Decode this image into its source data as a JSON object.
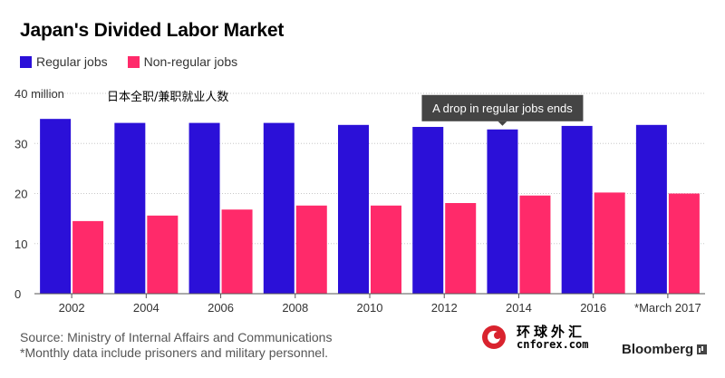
{
  "title": "Japan's Divided Labor Market",
  "subtitle_cn": "日本全职/兼职就业人数",
  "legend": [
    {
      "label": "Regular jobs",
      "color": "#2b10d8"
    },
    {
      "label": "Non-regular jobs",
      "color": "#ff2a6a"
    }
  ],
  "annotation": {
    "text": "A drop in regular jobs ends",
    "category": "2014"
  },
  "footer": {
    "source": "Source: Ministry of Internal Affairs and Communications",
    "note": "*Monthly data include prisoners and military personnel."
  },
  "watermark": {
    "cn": "环球外汇",
    "en": "cnforex.com"
  },
  "brand": "Bloomberg",
  "chart_data": {
    "type": "bar",
    "categories": [
      "2002",
      "2004",
      "2006",
      "2008",
      "2010",
      "2012",
      "2014",
      "2016",
      "*March 2017"
    ],
    "series": [
      {
        "name": "Regular jobs",
        "color": "#2b10d8",
        "values": [
          34.9,
          34.1,
          34.1,
          34.1,
          33.7,
          33.3,
          32.8,
          33.5,
          33.7
        ]
      },
      {
        "name": "Non-regular jobs",
        "color": "#ff2a6a",
        "values": [
          14.5,
          15.6,
          16.8,
          17.6,
          17.6,
          18.1,
          19.6,
          20.2,
          20.0
        ]
      }
    ],
    "ylim": [
      0,
      40
    ],
    "yticks": [
      0,
      10,
      20,
      30,
      40
    ],
    "ytick_labels": [
      "0",
      "10",
      "20",
      "30",
      "40 million"
    ],
    "xlabel": "",
    "ylabel": "",
    "grid": true
  }
}
